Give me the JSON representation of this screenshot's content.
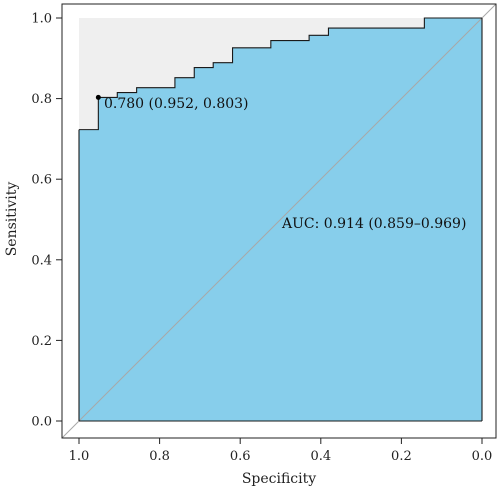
{
  "chart_data": {
    "type": "line",
    "title": "",
    "xlabel": "Specificity",
    "ylabel": "Sensitivity",
    "xlim": [
      1.0,
      0.0
    ],
    "ylim": [
      0.0,
      1.0
    ],
    "x_reversed": true,
    "x_ticks": [
      "1.0",
      "0.8",
      "0.6",
      "0.4",
      "0.2",
      "0.0"
    ],
    "y_ticks": [
      "0.0",
      "0.2",
      "0.4",
      "0.6",
      "0.8",
      "1.0"
    ],
    "series": [
      {
        "specificity": [
          1.0,
          0.952,
          0.952,
          0.905,
          0.905,
          0.857,
          0.857,
          0.762,
          0.762,
          0.714,
          0.714,
          0.667,
          0.667,
          0.619,
          0.619,
          0.524,
          0.524,
          0.429,
          0.429,
          0.381,
          0.381,
          0.143,
          0.143,
          0.0
        ],
        "sensitivity": [
          0.723,
          0.723,
          0.803,
          0.803,
          0.815,
          0.815,
          0.827,
          0.827,
          0.852,
          0.852,
          0.877,
          0.877,
          0.889,
          0.889,
          0.926,
          0.926,
          0.944,
          0.944,
          0.957,
          0.957,
          0.975,
          0.975,
          1.0,
          1.0
        ]
      }
    ],
    "best_point": {
      "specificity": 0.952,
      "sensitivity": 0.803,
      "label": "0.780 (0.952, 0.803)"
    },
    "auc_label": "AUC: 0.914 (0.859–0.969)",
    "fill_color": "#87ceeb",
    "ci_band_color": "#efefef",
    "diagonal_color": "#a8a8a8",
    "grid": false
  }
}
